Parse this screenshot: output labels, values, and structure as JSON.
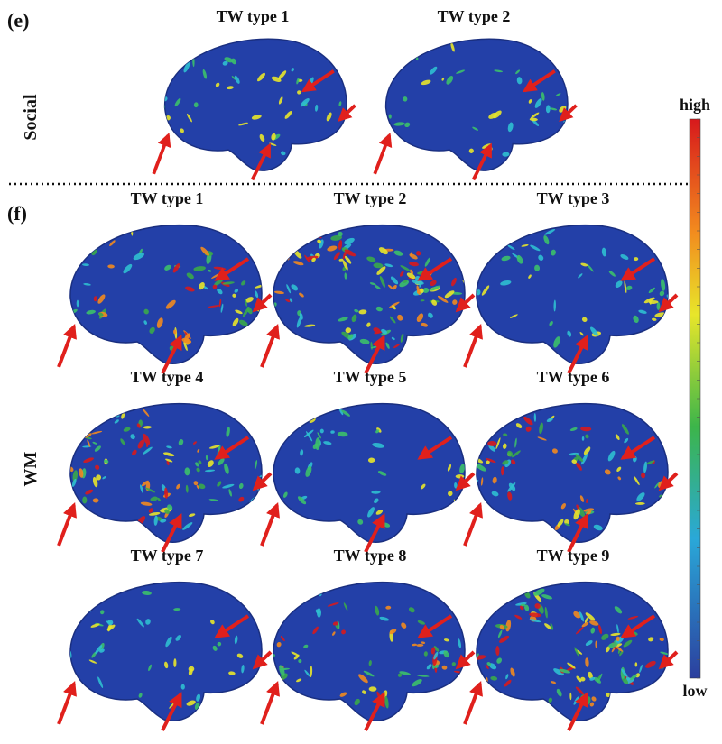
{
  "panels": [
    {
      "letter": "(e)",
      "row_label": "Social",
      "items": [
        "TW type 1",
        "TW type 2"
      ]
    },
    {
      "letter": "(f)",
      "row_label": "WM",
      "items": [
        "TW type 1",
        "TW type 2",
        "TW type 3",
        "TW type 4",
        "TW type 5",
        "TW type 6",
        "TW type 7",
        "TW type 8",
        "TW type 9"
      ]
    }
  ],
  "colorbar": {
    "high": "high",
    "low": "low"
  }
}
